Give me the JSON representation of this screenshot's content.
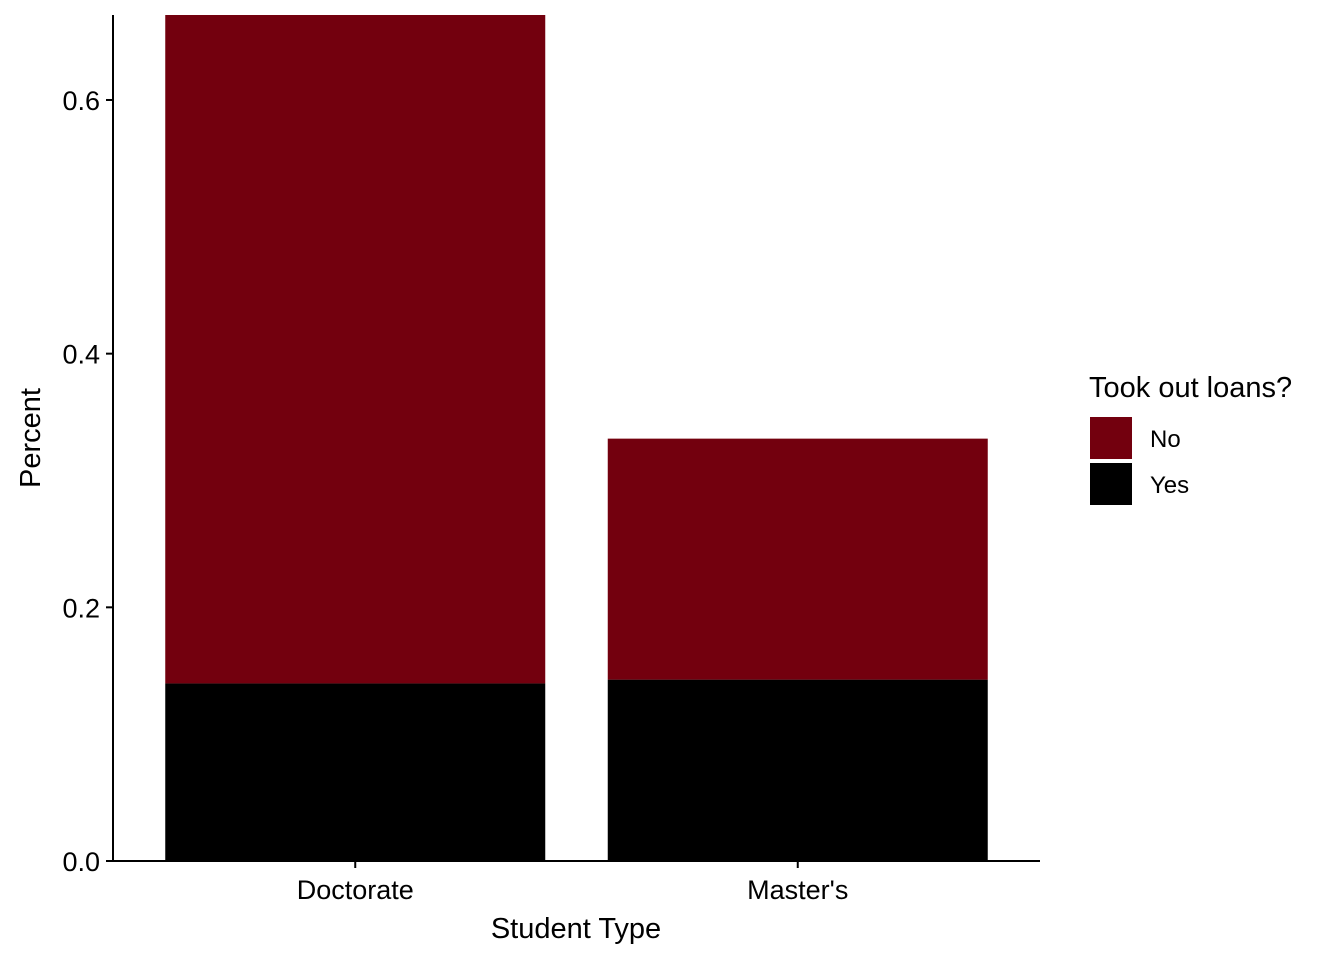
{
  "chart_data": {
    "type": "bar",
    "stacked": true,
    "categories": [
      "Doctorate",
      "Master's"
    ],
    "series": [
      {
        "name": "Yes",
        "color": "#000000",
        "values": [
          0.14,
          0.143
        ]
      },
      {
        "name": "No",
        "color": "#73000E",
        "values": [
          0.527,
          0.19
        ]
      }
    ],
    "xlabel": "Student Type",
    "ylabel": "Percent",
    "ylim": [
      0,
      0.667
    ],
    "yticks": [
      0.0,
      0.2,
      0.4,
      0.6
    ],
    "ytick_labels": [
      "0.0",
      "0.2",
      "0.4",
      "0.6"
    ],
    "grid": false,
    "legend": {
      "title": "Took out loans?",
      "placement": "right",
      "entries": [
        {
          "label": "No",
          "color": "#73000E"
        },
        {
          "label": "Yes",
          "color": "#000000"
        }
      ]
    }
  }
}
